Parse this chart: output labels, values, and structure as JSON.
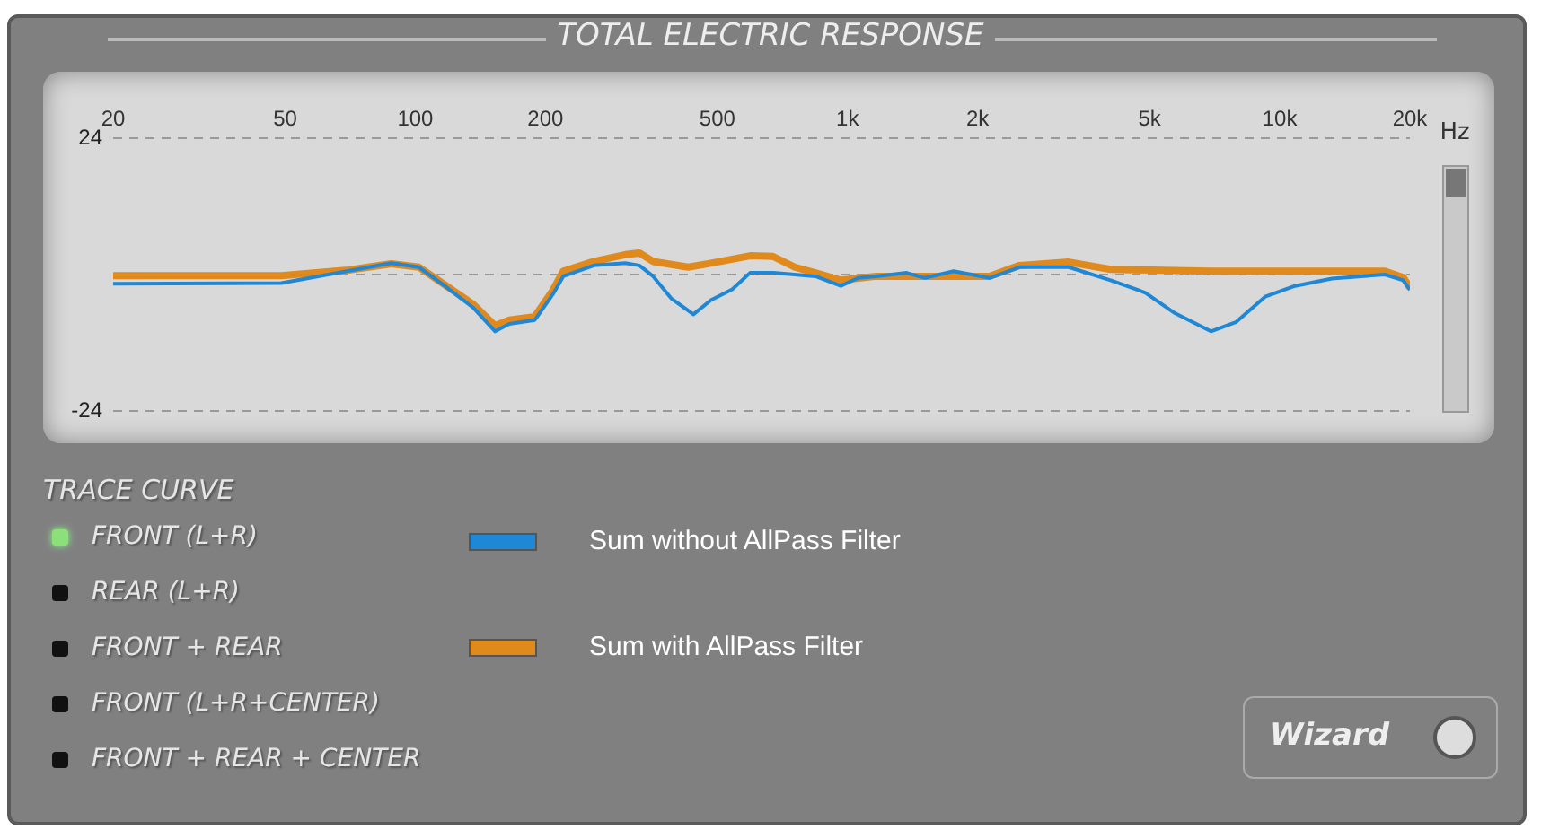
{
  "chart_data": {
    "type": "line",
    "title": "TOTAL ELECTRIC RESPONSE",
    "xlabel": "Hz",
    "log": "x",
    "xlim": [
      20,
      20000
    ],
    "xticks": [
      20,
      50,
      100,
      200,
      500,
      {
        "value": 1000,
        "label": "1k"
      },
      {
        "value": 2000,
        "label": "2k"
      },
      {
        "value": 5000,
        "label": "5k"
      },
      {
        "value": 10000,
        "label": "10k"
      },
      {
        "value": 20000,
        "label": "20k"
      }
    ],
    "ylim": [
      -24,
      24
    ],
    "yticks": [
      24,
      {
        "value": 0,
        "label": null
      },
      -24
    ],
    "grid": "y",
    "legend": "bottom",
    "marker": "none",
    "line_style": "solid",
    "series": [
      {
        "name": "Sum without AllPass Filter",
        "color": "#1f88d6",
        "x": [
          20,
          49,
          88,
          102,
          117,
          136,
          153,
          165,
          189,
          208,
          220,
          259,
          306,
          330,
          355,
          391,
          440,
          483,
          541,
          595,
          674,
          843,
          965,
          1058,
          1165,
          1370,
          1510,
          1760,
          2130,
          2500,
          3250,
          4060,
          4890,
          5720,
          6930,
          7910,
          9250,
          10850,
          13200,
          17500,
          19300,
          20000
        ],
        "values": [
          -1.6,
          -1.5,
          2.0,
          1.3,
          -2,
          -5.8,
          -10,
          -8.7,
          -8,
          -3.5,
          -0.3,
          1.6,
          2.0,
          1.6,
          -0.3,
          -4.2,
          -7,
          -4.5,
          -2.6,
          0.3,
          0.3,
          -0.3,
          -2,
          -0.6,
          -0.3,
          0.3,
          -0.6,
          0.6,
          -0.6,
          1.3,
          1.3,
          -1,
          -3.2,
          -6.8,
          -10,
          -8.4,
          -3.9,
          -2,
          -0.7,
          0,
          -1,
          -2.7
        ]
      },
      {
        "name": "Sum with AllPass Filter",
        "color": "#e08a1e",
        "x": [
          20,
          49,
          70,
          88,
          102,
          117,
          136,
          153,
          165,
          189,
          208,
          220,
          259,
          306,
          330,
          355,
          428,
          483,
          595,
          672,
          755,
          843,
          965,
          1165,
          1510,
          2130,
          2500,
          3250,
          4060,
          6930,
          10850,
          17500,
          19300,
          20000
        ],
        "values": [
          -0.2,
          -0.2,
          0.8,
          1.9,
          1.3,
          -1.8,
          -5.2,
          -9,
          -8,
          -7.4,
          -2.8,
          0.6,
          2.3,
          3.5,
          3.8,
          2.3,
          1.3,
          2.0,
          3.3,
          3.2,
          1.3,
          0.3,
          -1,
          -0.3,
          -0.3,
          -0.3,
          1.6,
          2.2,
          0.9,
          0.6,
          0.6,
          0.6,
          -0.5,
          -2.3
        ]
      }
    ],
    "annotations": [
      "TRACE CURVE",
      "FRONT (L+R)",
      "REAR (L+R)",
      "FRONT + REAR",
      "FRONT  (L+R+CENTER)",
      "FRONT + REAR + CENTER",
      "Wizard"
    ]
  }
}
